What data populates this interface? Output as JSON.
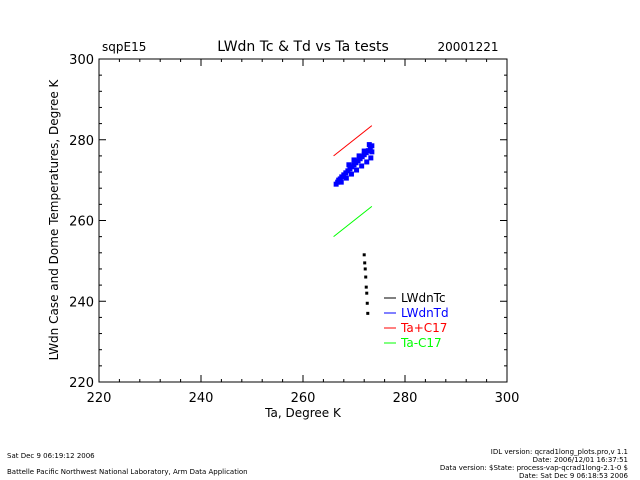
{
  "header": {
    "site": "sqpE15",
    "title": "LWdn Tc & Td vs Ta tests",
    "date": "20001221"
  },
  "chart_data": {
    "type": "scatter",
    "title": "LWdn Tc & Td vs Ta tests",
    "xlabel": "Ta, Degree K",
    "ylabel": "LWdn Case and Dome Temperatures, Degree K",
    "xlim": [
      220,
      300
    ],
    "ylim": [
      220,
      300
    ],
    "xticks": [
      "220",
      "240",
      "260",
      "280",
      "300"
    ],
    "yticks": [
      "220",
      "240",
      "260",
      "280",
      "300"
    ],
    "grid": false,
    "legend_position": "lower-right",
    "series": [
      {
        "name": "LWdnTc",
        "color": "#000000",
        "points": [
          [
            272.0,
            251.5
          ],
          [
            272.1,
            249.5
          ],
          [
            272.2,
            248.0
          ],
          [
            272.3,
            246.0
          ],
          [
            272.4,
            243.5
          ],
          [
            272.5,
            242.0
          ],
          [
            272.6,
            239.5
          ],
          [
            272.7,
            237.0
          ]
        ]
      },
      {
        "name": "LWdnTd",
        "color": "#0000ff",
        "points": [
          [
            266.5,
            269.0
          ],
          [
            266.8,
            269.5
          ],
          [
            267.0,
            270.0
          ],
          [
            267.3,
            270.3
          ],
          [
            267.6,
            270.8
          ],
          [
            268.0,
            271.3
          ],
          [
            268.4,
            271.8
          ],
          [
            268.8,
            272.3
          ],
          [
            269.2,
            272.8
          ],
          [
            269.6,
            273.3
          ],
          [
            270.0,
            273.8
          ],
          [
            270.4,
            274.3
          ],
          [
            270.8,
            274.8
          ],
          [
            271.2,
            275.3
          ],
          [
            271.6,
            275.8
          ],
          [
            272.0,
            276.3
          ],
          [
            272.4,
            276.8
          ],
          [
            272.8,
            277.3
          ],
          [
            273.2,
            277.8
          ],
          [
            273.5,
            278.5
          ],
          [
            267.5,
            269.5
          ],
          [
            268.5,
            270.5
          ],
          [
            269.5,
            271.5
          ],
          [
            270.5,
            272.5
          ],
          [
            271.5,
            273.5
          ],
          [
            272.5,
            274.5
          ],
          [
            273.3,
            275.5
          ],
          [
            273.5,
            277.0
          ],
          [
            269.0,
            273.8
          ],
          [
            270.0,
            275.0
          ],
          [
            271.0,
            276.0
          ],
          [
            272.0,
            277.2
          ],
          [
            273.0,
            278.8
          ]
        ]
      },
      {
        "name": "Ta+C17",
        "color": "#ff0000",
        "line": [
          [
            266.0,
            276.0
          ],
          [
            273.5,
            283.5
          ]
        ]
      },
      {
        "name": "Ta-C17",
        "color": "#00ff00",
        "line": [
          [
            266.0,
            256.0
          ],
          [
            273.5,
            263.5
          ]
        ]
      }
    ]
  },
  "footer": {
    "left_date": "Sat Dec  9 06:19:12 2006",
    "org": "Battelle Pacific Northwest National Laboratory, Arm Data Application",
    "idl_version": "IDL version: qcrad1long_plots.pro,v 1.1",
    "date_line": "Date: 2006/12/01 16:37:51",
    "data_version": "Data version: $State: process-vap-qcrad1long-2.1-0 $",
    "data_date": "Date: Sat Dec  9 06:18:53 2006"
  }
}
